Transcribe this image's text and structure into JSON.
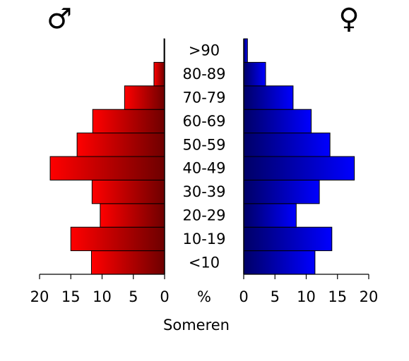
{
  "chart_data": {
    "type": "bar",
    "orientation": "horizontal-population-pyramid",
    "title": "",
    "xlabel": "Someren",
    "unit_label": "%",
    "categories": [
      "<10",
      "10-19",
      "20-29",
      "30-39",
      "40-49",
      "50-59",
      "60-69",
      "70-79",
      "80-89",
      ">90"
    ],
    "series": [
      {
        "name": "♂",
        "side": "left",
        "color_light": "#ff0000",
        "color_dark": "#6e0000",
        "values": [
          11.7,
          15.0,
          10.3,
          11.6,
          18.3,
          14.0,
          11.5,
          6.4,
          1.7,
          0.1
        ]
      },
      {
        "name": "♀",
        "side": "right",
        "color_light": "#0000ff",
        "color_dark": "#000066",
        "values": [
          11.4,
          14.1,
          8.4,
          12.1,
          17.7,
          13.8,
          10.8,
          7.9,
          3.5,
          0.6
        ]
      }
    ],
    "xlim": [
      0,
      20
    ],
    "ticks": [
      "20",
      "15",
      "10",
      "5",
      "0",
      "0",
      "5",
      "10",
      "15",
      "20"
    ],
    "grid": false
  },
  "symbols": {
    "male": "♂",
    "female": "♀"
  }
}
